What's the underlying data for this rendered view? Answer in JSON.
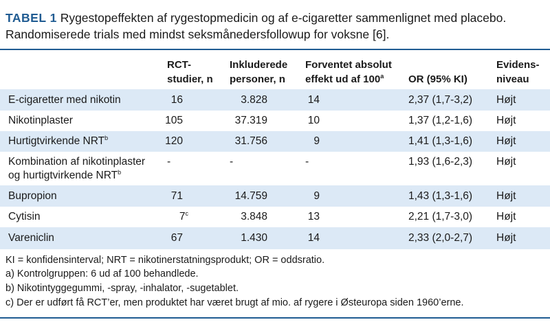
{
  "title": {
    "label": "TABEL 1",
    "text": "Rygestopeffekten af rygestopmedicin og af e-cigaretter sammenlignet med placebo. Randomiserede trials med mindst seksmånedersfollowup for voksne [6]."
  },
  "headers": {
    "rct_line1": "RCT-",
    "rct_line2": "studier, n",
    "incl_line1": "Inkluderede",
    "incl_line2": "personer, n",
    "expected_line1": "Forventet absolut",
    "expected_line2": "effekt ud af 100",
    "expected_sup": "a",
    "or": "OR (95% KI)",
    "evid_line1": "Evidens-",
    "evid_line2": "niveau"
  },
  "rows": [
    {
      "name": "E-cigaretter med nikotin",
      "rct": "16",
      "included": "3.828",
      "expected": "14",
      "or": "2,37 (1,7-3,2)",
      "evidence": "Højt"
    },
    {
      "name": "Nikotinplaster",
      "rct": "105",
      "included": "37.319",
      "expected": "10",
      "or": "1,37 (1,2-1,6)",
      "evidence": "Højt"
    },
    {
      "name": "Hurtigtvirkende NRT",
      "name_sup": "b",
      "rct": "120",
      "included": "31.756",
      "expected": "9",
      "or": "1,41 (1,3-1,6)",
      "evidence": "Højt"
    },
    {
      "name_line1": "Kombination af nikotinplaster",
      "name_line2": "og hurtigtvirkende NRT",
      "name_sup": "b",
      "rct": "-",
      "included": "-",
      "expected": "-",
      "or": "1,93 (1,6-2,3)",
      "evidence": "Højt"
    },
    {
      "name": "Bupropion",
      "rct": "71",
      "included": "14.759",
      "expected": "9",
      "or": "1,43 (1,3-1,6)",
      "evidence": "Højt"
    },
    {
      "name": "Cytisin",
      "rct": "7",
      "rct_sup": "c",
      "included": "3.848",
      "expected": "13",
      "or": "2,21 (1,7-3,0)",
      "evidence": "Højt"
    },
    {
      "name": "Vareniclin",
      "rct": "67",
      "included": "1.430",
      "expected": "14",
      "or": "2,33 (2,0-2,7)",
      "evidence": "Højt"
    }
  ],
  "footnotes": [
    "KI = konfidensinterval; NRT = nikotinerstatningsprodukt; OR = oddsratio.",
    "a) Kontrolgruppen: 6 ud af 100 behandlede.",
    "b) Nikotintyggegummi, -spray, -inhalator, -sugetablet.",
    "c) Der er udført få RCT’er, men produktet har været brugt af mio. af rygere i Østeuropa siden 1960’erne."
  ],
  "colors": {
    "accent": "#1f5b92",
    "row_shade": "#dce9f6"
  }
}
